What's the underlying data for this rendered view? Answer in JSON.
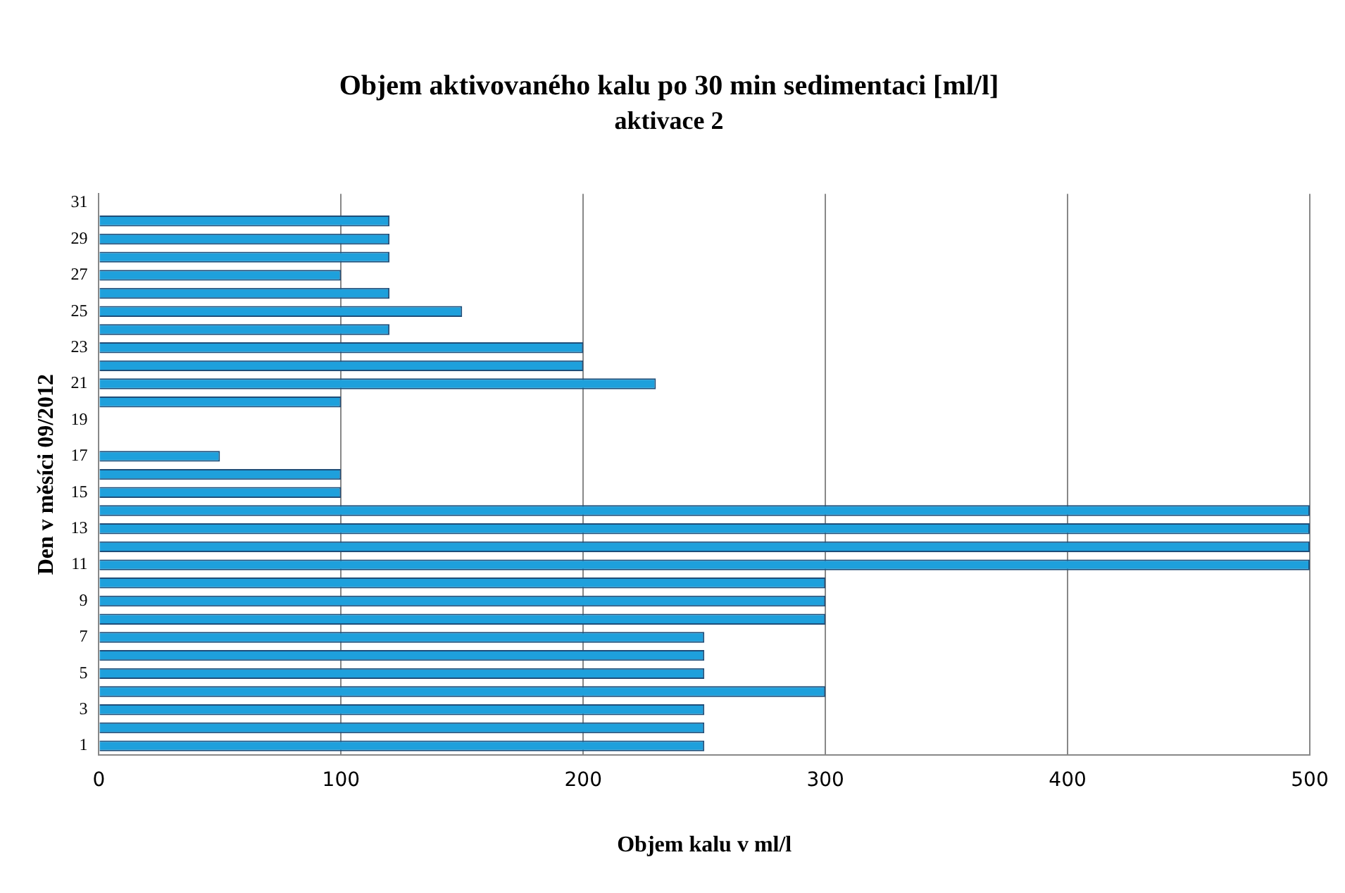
{
  "chart_data": {
    "type": "bar",
    "orientation": "horizontal",
    "title": "Objem aktivovaného kalu po 30 min sedimentaci [ml/l]",
    "subtitle": "aktivace 2",
    "xlabel": "Objem kalu v ml/l",
    "ylabel": "Den v měsíci 09/2012",
    "categories": [
      "31",
      null,
      "29",
      null,
      "27",
      null,
      "25",
      null,
      "23",
      null,
      "21",
      null,
      "19",
      null,
      "17",
      null,
      "15",
      null,
      "13",
      null,
      "11",
      null,
      "9",
      null,
      "7",
      null,
      "5",
      null,
      "3",
      null,
      "1"
    ],
    "values": [
      null,
      120,
      120,
      120,
      100,
      120,
      150,
      120,
      200,
      200,
      230,
      100,
      null,
      null,
      50,
      100,
      100,
      500,
      500,
      500,
      500,
      300,
      300,
      300,
      250,
      250,
      250,
      300,
      250,
      250,
      250
    ],
    "color": "#1ea0dc",
    "xlim": [
      0,
      500
    ],
    "xticks": [
      0,
      100,
      200,
      300,
      400,
      500
    ],
    "grid": "x",
    "legend": false
  }
}
